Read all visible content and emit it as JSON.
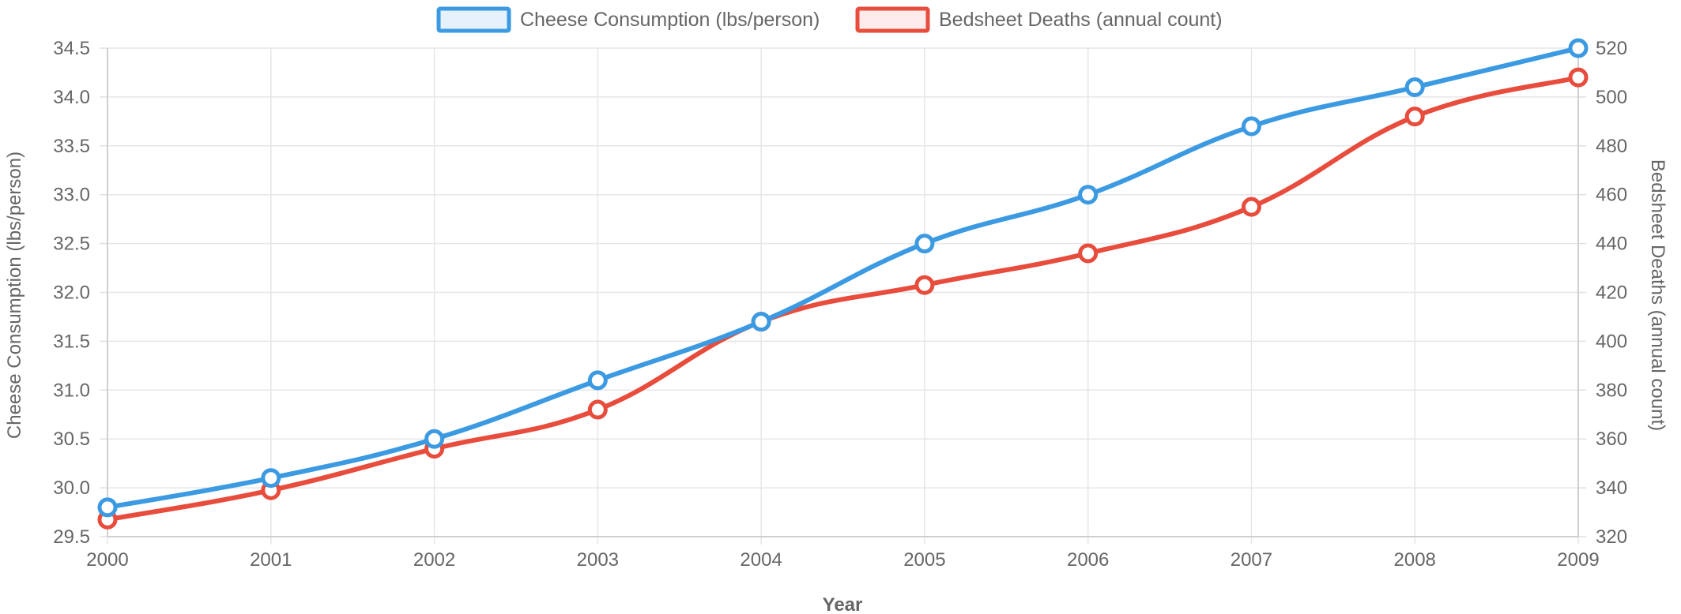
{
  "chart_data": {
    "type": "line",
    "categories": [
      "2000",
      "2001",
      "2002",
      "2003",
      "2004",
      "2005",
      "2006",
      "2007",
      "2008",
      "2009"
    ],
    "xlabel": "Year",
    "series": [
      {
        "name": "Cheese Consumption (lbs/person)",
        "axis": "left",
        "color": "#3b9ae1",
        "fill": "#e6f1fb",
        "values": [
          29.8,
          30.1,
          30.5,
          31.1,
          31.7,
          32.5,
          33.0,
          33.7,
          34.1,
          34.5
        ]
      },
      {
        "name": "Bedsheet Deaths (annual count)",
        "axis": "right",
        "color": "#e74c3c",
        "fill": "#fcebea",
        "values": [
          327,
          339,
          356,
          372,
          408,
          423,
          436,
          455,
          492,
          508
        ]
      }
    ],
    "y_left": {
      "label": "Cheese Consumption (lbs/person)",
      "range": [
        29.5,
        34.5
      ],
      "ticks": [
        "34.5",
        "34.0",
        "33.5",
        "33.0",
        "32.5",
        "32.0",
        "31.5",
        "31.0",
        "30.5",
        "30.0",
        "29.5"
      ]
    },
    "y_right": {
      "label": "Bedsheet Deaths (annual count)",
      "range": [
        320,
        520
      ],
      "ticks": [
        "520",
        "500",
        "480",
        "460",
        "440",
        "420",
        "400",
        "380",
        "360",
        "340",
        "320"
      ]
    },
    "grid": true,
    "legend_position": "top-center",
    "line_style": "smooth",
    "point_style": "hollow-circle"
  }
}
